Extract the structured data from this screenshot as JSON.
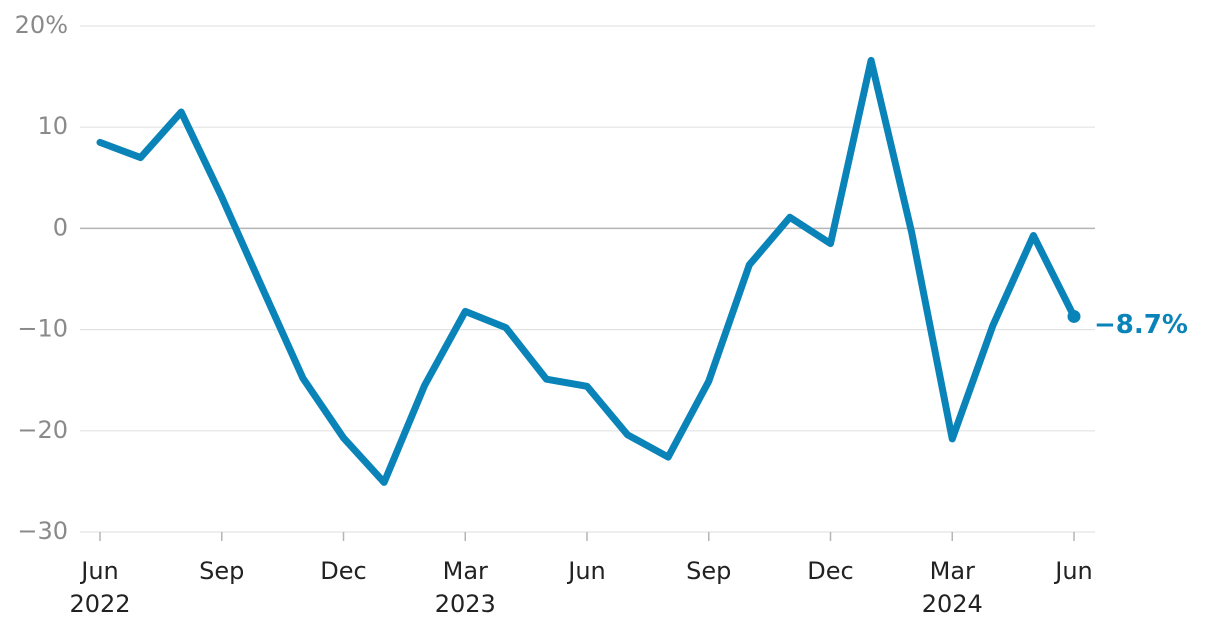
{
  "chart_data": {
    "type": "line",
    "categories": [
      "Jun",
      null,
      null,
      "Sep",
      null,
      null,
      "Dec",
      null,
      null,
      "Mar",
      null,
      null,
      "Jun",
      null,
      null,
      "Sep",
      null,
      null,
      "Dec",
      null,
      null,
      "Mar",
      null,
      null,
      "Jun"
    ],
    "years": [
      "2022",
      null,
      null,
      null,
      null,
      null,
      null,
      null,
      null,
      "2023",
      null,
      null,
      null,
      null,
      null,
      null,
      null,
      null,
      null,
      null,
      null,
      "2024",
      null,
      null,
      null
    ],
    "series": [
      {
        "color": "#0a84b8",
        "values": [
          8.5,
          7.0,
          11.5,
          3.1,
          -5.9,
          -14.8,
          -20.7,
          -25.1,
          -15.5,
          -8.2,
          -9.8,
          -14.9,
          -15.6,
          -20.4,
          -22.6,
          -15.1,
          -3.6,
          1.1,
          -1.5,
          16.6,
          -0.4,
          -20.8,
          -9.6,
          -0.7,
          -8.7
        ],
        "value_labels": [
          null,
          null,
          null,
          null,
          null,
          null,
          null,
          null,
          null,
          null,
          null,
          null,
          null,
          null,
          null,
          null,
          null,
          null,
          null,
          null,
          null,
          null,
          null,
          null,
          "−8.7%"
        ]
      }
    ],
    "ylim": [
      -30,
      20
    ],
    "yticks": [
      {
        "value": -30,
        "label": "−30"
      },
      {
        "value": -20,
        "label": "−20"
      },
      {
        "value": -10,
        "label": "−10"
      },
      0,
      10,
      {
        "value": 20,
        "label": "20%"
      }
    ],
    "grid": true
  }
}
